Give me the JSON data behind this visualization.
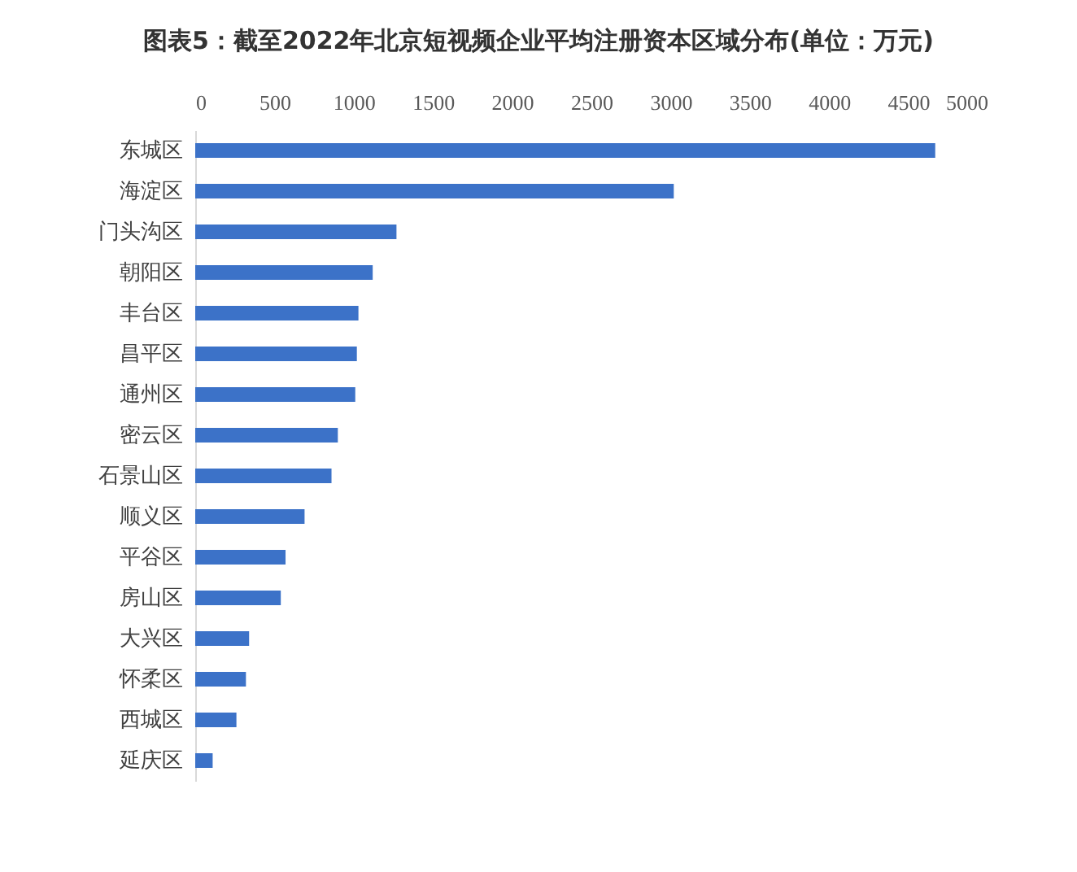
{
  "chart_data": {
    "type": "bar",
    "orientation": "horizontal",
    "title": "图表5：截至2022年北京短视频企业平均注册资本区域分布(单位：万元)",
    "categories": [
      "东城区",
      "海淀区",
      "门头沟区",
      "朝阳区",
      "丰台区",
      "昌平区",
      "通州区",
      "密云区",
      "石景山区",
      "顺义区",
      "平谷区",
      "房山区",
      "大兴区",
      "怀柔区",
      "西城区",
      "延庆区"
    ],
    "values": [
      4670,
      3020,
      1270,
      1120,
      1030,
      1020,
      1010,
      900,
      860,
      690,
      570,
      540,
      340,
      320,
      260,
      110
    ],
    "color": "#3c72c8",
    "xlim": [
      0,
      5000
    ],
    "xticks": [
      0,
      500,
      1000,
      1500,
      2000,
      2500,
      3000,
      3500,
      4000,
      4500,
      5000
    ]
  }
}
